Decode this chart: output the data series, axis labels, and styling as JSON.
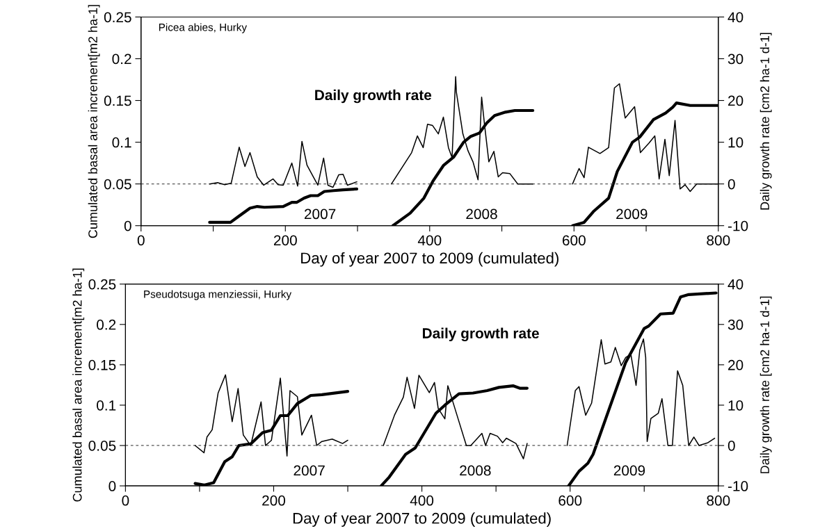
{
  "chart_data": [
    {
      "type": "line",
      "xlabel": "Day of year 2007 to 2009 (cumulated)",
      "ylabel": "Cumulated basal area increment[m2 ha-1]",
      "y2label": "Daily growth rate [cm2 ha-1 d-1]",
      "xlim": [
        0,
        800
      ],
      "xticks": [
        0,
        {
          "value": 100,
          "label": null
        },
        200,
        {
          "value": 300,
          "label": null
        },
        400,
        {
          "value": 500,
          "label": null
        },
        600,
        {
          "value": 700,
          "label": null
        },
        800
      ],
      "ylim": [
        0,
        0.25
      ],
      "yticks": [
        0,
        0.05,
        0.1,
        0.15,
        0.2,
        0.25
      ],
      "y2lim": [
        -10,
        40
      ],
      "y2ticks": [
        -10,
        0,
        10,
        20,
        30,
        40
      ],
      "ref_lines": [
        {
          "axis": "y2",
          "value": 0,
          "color": "#555555",
          "line_style": "dashed"
        }
      ],
      "annotations": [
        "Picea abies, Hurky",
        "Daily growth rate",
        "2007",
        "2008",
        "2009"
      ],
      "series": [
        {
          "axis": "y2",
          "color": "#000000",
          "x": [
            95,
            106,
            116,
            125,
            136,
            144,
            151,
            161,
            170,
            183,
            190,
            197,
            209,
            217,
            223,
            230,
            245,
            253,
            259,
            266,
            274,
            280,
            286,
            299
          ],
          "values": [
            0,
            0.3,
            -0.2,
            0.2,
            8.8,
            4.2,
            7.5,
            1.7,
            -0.3,
            1.2,
            -0.2,
            -0.3,
            5,
            -0.5,
            10.2,
            4.5,
            -0.3,
            6.2,
            -0.3,
            -0.8,
            2.2,
            2.3,
            -0.3,
            0.5
          ]
        },
        {
          "axis": "y2",
          "color": "#000000",
          "x": [
            347,
            375,
            383,
            391,
            397,
            404,
            412,
            419,
            426,
            431,
            436,
            437,
            446,
            453,
            460,
            467,
            472,
            476,
            482,
            489,
            495,
            501,
            511,
            522,
            543
          ],
          "values": [
            0,
            7.5,
            11.5,
            8.7,
            14.3,
            14,
            12,
            16,
            8.7,
            6.3,
            25.7,
            22,
            12,
            8,
            5.3,
            1,
            20.8,
            14.2,
            5.3,
            7.8,
            1.7,
            2.7,
            2.5,
            0,
            0
          ]
        },
        {
          "axis": "y2",
          "color": "#000000",
          "x": [
            598,
            607,
            614,
            620,
            636,
            648,
            656,
            663,
            671,
            684,
            692,
            704,
            712,
            718,
            726,
            732,
            740,
            747,
            754,
            761,
            770,
            800
          ],
          "values": [
            0,
            3.7,
            1.5,
            8.8,
            7.3,
            8.7,
            23,
            24,
            15.8,
            18.5,
            7.5,
            9.8,
            11.5,
            1.2,
            10.7,
            2,
            15.2,
            -1.2,
            -0.2,
            -1.8,
            0,
            0
          ]
        },
        {
          "axis": "y",
          "color": "#000000",
          "x": [
            95,
            124,
            135,
            151,
            161,
            171,
            197,
            209,
            216,
            226,
            235,
            245,
            254,
            267,
            280,
            299
          ],
          "values": [
            0.004,
            0.004,
            0.011,
            0.021,
            0.023,
            0.022,
            0.023,
            0.028,
            0.028,
            0.033,
            0.036,
            0.036,
            0.041,
            0.042,
            0.043,
            0.044
          ]
        },
        {
          "axis": "y",
          "color": "#000000",
          "x": [
            349,
            373,
            392,
            405,
            419,
            433,
            447,
            457,
            469,
            479,
            490,
            505,
            518,
            543
          ],
          "values": [
            0,
            0.015,
            0.033,
            0.054,
            0.072,
            0.082,
            0.1,
            0.107,
            0.111,
            0.123,
            0.132,
            0.136,
            0.138,
            0.138
          ]
        },
        {
          "axis": "y",
          "color": "#000000",
          "x": [
            598,
            614,
            627,
            648,
            660,
            681,
            691,
            710,
            727,
            737,
            742,
            761,
            800
          ],
          "values": [
            0,
            0.004,
            0.017,
            0.033,
            0.065,
            0.1,
            0.106,
            0.127,
            0.135,
            0.142,
            0.147,
            0.144,
            0.144
          ]
        }
      ]
    },
    {
      "type": "line",
      "xlabel": "Day of year 2007 to 2009 (cumulated)",
      "ylabel": "Cumulated basal area increment[m2 ha-1]",
      "y2label": "Daily growth rate [cm2 ha-1 d-1]",
      "xlim": [
        0,
        800
      ],
      "xticks": [
        0,
        {
          "value": 100,
          "label": null
        },
        200,
        {
          "value": 300,
          "label": null
        },
        400,
        {
          "value": 500,
          "label": null
        },
        600,
        {
          "value": 700,
          "label": null
        },
        800
      ],
      "ylim": [
        0,
        0.25
      ],
      "yticks": [
        0,
        0.05,
        0.1,
        0.15,
        0.2,
        0.25
      ],
      "y2lim": [
        -10,
        40
      ],
      "y2ticks": [
        -10,
        0,
        10,
        20,
        30,
        40
      ],
      "ref_lines": [
        {
          "axis": "y2",
          "value": 0,
          "color": "#555555",
          "line_style": "dashed"
        }
      ],
      "annotations": [
        "Pseudotsuga menziessii, Hurky",
        "Daily growth rate",
        "2007",
        "2008",
        "2009"
      ],
      "series": [
        {
          "axis": "y2",
          "color": "#000000",
          "x": [
            94,
            106,
            110,
            117,
            125,
            135,
            144,
            152,
            159,
            169,
            183,
            189,
            197,
            209,
            218,
            222,
            232,
            238,
            251,
            258,
            265,
            279,
            293,
            300
          ],
          "values": [
            0,
            -1.8,
            2.1,
            3.9,
            13,
            17.5,
            5.9,
            14.1,
            2.6,
            0,
            10.8,
            0,
            1.3,
            16.7,
            -2.6,
            13.6,
            12.1,
            2.6,
            7.5,
            0,
            1,
            1.6,
            0.5,
            1.3
          ]
        },
        {
          "axis": "y2",
          "color": "#000000",
          "x": [
            348,
            363,
            375,
            380,
            390,
            396,
            410,
            417,
            422,
            431,
            435,
            441,
            460,
            466,
            481,
            486,
            492,
            502,
            509,
            514,
            527,
            537,
            542
          ],
          "values": [
            0,
            7.5,
            12,
            16.9,
            9.2,
            17.4,
            13.1,
            15.6,
            9.2,
            6.6,
            14.8,
            11.3,
            0,
            0,
            3,
            0,
            3,
            2.3,
            0.7,
            1.8,
            0.5,
            -3.3,
            0.5
          ]
        },
        {
          "axis": "y2",
          "color": "#000000",
          "x": [
            596,
            607,
            612,
            621,
            629,
            642,
            647,
            655,
            661,
            669,
            675,
            682,
            689,
            694,
            699,
            702,
            704,
            709,
            719,
            724,
            732,
            738,
            745,
            752,
            760,
            767,
            774,
            786,
            795
          ],
          "values": [
            0,
            13.6,
            14.6,
            7.5,
            10.5,
            26.2,
            20.2,
            20.7,
            24.3,
            19.8,
            21.8,
            22.6,
            14.9,
            23.6,
            26.4,
            21.8,
            1,
            6.7,
            8,
            11.6,
            0,
            0,
            18.5,
            14.9,
            0,
            2.1,
            0,
            0.7,
            1.8
          ]
        },
        {
          "axis": "y",
          "color": "#000000",
          "x": [
            94,
            106,
            119,
            134,
            144,
            153,
            169,
            185,
            197,
            209,
            219,
            232,
            250,
            265,
            300
          ],
          "values": [
            0.003,
            0.001,
            0.004,
            0.03,
            0.036,
            0.05,
            0.052,
            0.066,
            0.069,
            0.087,
            0.087,
            0.102,
            0.112,
            0.113,
            0.117
          ]
        },
        {
          "axis": "y",
          "color": "#000000",
          "x": [
            345,
            356,
            378,
            391,
            419,
            431,
            450,
            469,
            488,
            504,
            523,
            532,
            542
          ],
          "values": [
            0,
            0.011,
            0.039,
            0.047,
            0.09,
            0.1,
            0.114,
            0.115,
            0.118,
            0.122,
            0.124,
            0.121,
            0.121
          ]
        },
        {
          "axis": "y",
          "color": "#000000",
          "x": [
            598,
            612,
            624,
            631,
            675,
            700,
            706,
            722,
            739,
            749,
            760,
            797
          ],
          "values": [
            0,
            0.018,
            0.028,
            0.039,
            0.153,
            0.195,
            0.198,
            0.213,
            0.214,
            0.234,
            0.237,
            0.239
          ]
        }
      ]
    }
  ]
}
